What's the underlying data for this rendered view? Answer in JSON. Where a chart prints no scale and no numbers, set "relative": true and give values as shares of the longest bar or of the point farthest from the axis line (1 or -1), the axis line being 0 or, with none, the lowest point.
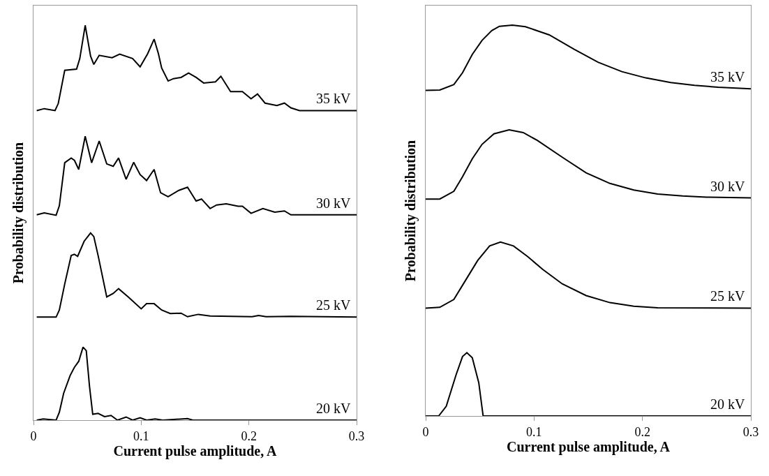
{
  "chart_data": [
    {
      "type": "line",
      "relative": true,
      "xlabel": "Current pulse amplitude, A",
      "ylabel": "Probability distribution",
      "xlim": [
        0,
        0.3
      ],
      "xticks": [
        0,
        {
          "value": 0.1,
          "label": "0.1"
        },
        {
          "value": 0.2,
          "label": "0.2"
        },
        {
          "value": 0.3,
          "label": "0.3"
        }
      ],
      "series": [
        {
          "name": "35 kV",
          "color": "#000000",
          "x": [
            0.003,
            0.01,
            0.02,
            0.023,
            0.029,
            0.04,
            0.043,
            0.048,
            0.053,
            0.056,
            0.061,
            0.073,
            0.08,
            0.092,
            0.099,
            0.106,
            0.112,
            0.116,
            0.119,
            0.125,
            0.13,
            0.137,
            0.144,
            0.151,
            0.158,
            0.169,
            0.174,
            0.183,
            0.194,
            0.202,
            0.208,
            0.215,
            0.226,
            0.233,
            0.239,
            0.247,
            0.3
          ],
          "values": [
            0.784,
            0.789,
            0.784,
            0.802,
            0.886,
            0.889,
            0.916,
            1,
            0.922,
            0.901,
            0.924,
            0.918,
            0.927,
            0.916,
            0.895,
            0.928,
            0.965,
            0.928,
            0.892,
            0.859,
            0.865,
            0.868,
            0.879,
            0.868,
            0.854,
            0.857,
            0.871,
            0.832,
            0.832,
            0.814,
            0.826,
            0.803,
            0.797,
            0.803,
            0.791,
            0.784,
            0.784
          ]
        },
        {
          "name": "30 kV",
          "color": "#000000",
          "x": [
            0.003,
            0.01,
            0.021,
            0.024,
            0.029,
            0.035,
            0.038,
            0.042,
            0.048,
            0.054,
            0.061,
            0.068,
            0.074,
            0.079,
            0.086,
            0.093,
            0.099,
            0.105,
            0.112,
            0.118,
            0.125,
            0.135,
            0.143,
            0.151,
            0.156,
            0.164,
            0.17,
            0.179,
            0.19,
            0.194,
            0.202,
            0.213,
            0.224,
            0.233,
            0.239,
            0.3
          ],
          "values": [
            0.52,
            0.525,
            0.519,
            0.543,
            0.652,
            0.664,
            0.658,
            0.635,
            0.719,
            0.652,
            0.707,
            0.649,
            0.643,
            0.664,
            0.61,
            0.653,
            0.622,
            0.607,
            0.635,
            0.576,
            0.566,
            0.582,
            0.59,
            0.555,
            0.56,
            0.536,
            0.545,
            0.548,
            0.542,
            0.542,
            0.524,
            0.536,
            0.527,
            0.53,
            0.52,
            0.52
          ]
        },
        {
          "name": "25 kV",
          "color": "#000000",
          "x": [
            0.003,
            0.021,
            0.024,
            0.029,
            0.035,
            0.038,
            0.041,
            0.047,
            0.053,
            0.056,
            0.06,
            0.068,
            0.074,
            0.079,
            0.088,
            0.1,
            0.105,
            0.112,
            0.119,
            0.127,
            0.137,
            0.143,
            0.153,
            0.164,
            0.203,
            0.209,
            0.216,
            0.239,
            0.3
          ],
          "values": [
            0.261,
            0.261,
            0.279,
            0.345,
            0.417,
            0.42,
            0.415,
            0.453,
            0.474,
            0.465,
            0.417,
            0.312,
            0.321,
            0.333,
            0.312,
            0.282,
            0.295,
            0.295,
            0.279,
            0.27,
            0.271,
            0.262,
            0.268,
            0.264,
            0.262,
            0.265,
            0.262,
            0.263,
            0.261
          ]
        },
        {
          "name": "20 kV",
          "color": "#000000",
          "x": [
            0.003,
            0.009,
            0.021,
            0.024,
            0.028,
            0.034,
            0.038,
            0.042,
            0.046,
            0.049,
            0.052,
            0.055,
            0.06,
            0.066,
            0.072,
            0.078,
            0.086,
            0.092,
            0.099,
            0.105,
            0.113,
            0.12,
            0.143,
            0.148,
            0.3
          ],
          "values": [
            0,
            0.003,
            0,
            0.02,
            0.068,
            0.113,
            0.134,
            0.149,
            0.185,
            0.176,
            0.086,
            0.015,
            0.017,
            0.009,
            0.012,
            0,
            0.008,
            0,
            0.006,
            0,
            0.003,
            0,
            0.004,
            0,
            0
          ]
        }
      ]
    },
    {
      "type": "line",
      "relative": true,
      "xlabel": "Current pulse amplitude, A",
      "ylabel": "Probability distribution",
      "xlim": [
        0,
        0.3
      ],
      "xticks": [
        0,
        {
          "value": 0.1,
          "label": "0.1"
        },
        {
          "value": 0.2,
          "label": "0.2"
        },
        {
          "value": 0.3,
          "label": "0.3"
        }
      ],
      "series": [
        {
          "name": "35 kV",
          "color": "#000000",
          "x": [
            0,
            0.013,
            0.026,
            0.034,
            0.043,
            0.052,
            0.061,
            0.068,
            0.08,
            0.092,
            0.114,
            0.137,
            0.159,
            0.181,
            0.203,
            0.226,
            0.248,
            0.27,
            0.3
          ],
          "values": [
            0.833,
            0.834,
            0.848,
            0.878,
            0.925,
            0.961,
            0.986,
            0.997,
            1,
            0.996,
            0.975,
            0.938,
            0.905,
            0.881,
            0.865,
            0.853,
            0.846,
            0.841,
            0.837
          ]
        },
        {
          "name": "30 kV",
          "color": "#000000",
          "x": [
            0,
            0.013,
            0.026,
            0.034,
            0.043,
            0.052,
            0.063,
            0.077,
            0.09,
            0.103,
            0.126,
            0.148,
            0.17,
            0.192,
            0.214,
            0.237,
            0.259,
            0.3
          ],
          "values": [
            0.555,
            0.555,
            0.575,
            0.612,
            0.658,
            0.695,
            0.722,
            0.732,
            0.725,
            0.705,
            0.662,
            0.622,
            0.595,
            0.578,
            0.568,
            0.563,
            0.56,
            0.558
          ]
        },
        {
          "name": "25 kV",
          "color": "#000000",
          "x": [
            0,
            0.013,
            0.026,
            0.037,
            0.048,
            0.059,
            0.069,
            0.081,
            0.094,
            0.108,
            0.126,
            0.148,
            0.17,
            0.192,
            0.214,
            0.3
          ],
          "values": [
            0.276,
            0.278,
            0.298,
            0.348,
            0.398,
            0.435,
            0.445,
            0.435,
            0.408,
            0.375,
            0.338,
            0.308,
            0.29,
            0.281,
            0.277,
            0.276
          ]
        },
        {
          "name": "20 kV",
          "color": "#000000",
          "x": [
            0,
            0.012,
            0.019,
            0.028,
            0.034,
            0.038,
            0.043,
            0.049,
            0.053,
            0.3
          ],
          "values": [
            0,
            0,
            0.025,
            0.105,
            0.152,
            0.162,
            0.149,
            0.085,
            0,
            0
          ]
        }
      ]
    }
  ]
}
